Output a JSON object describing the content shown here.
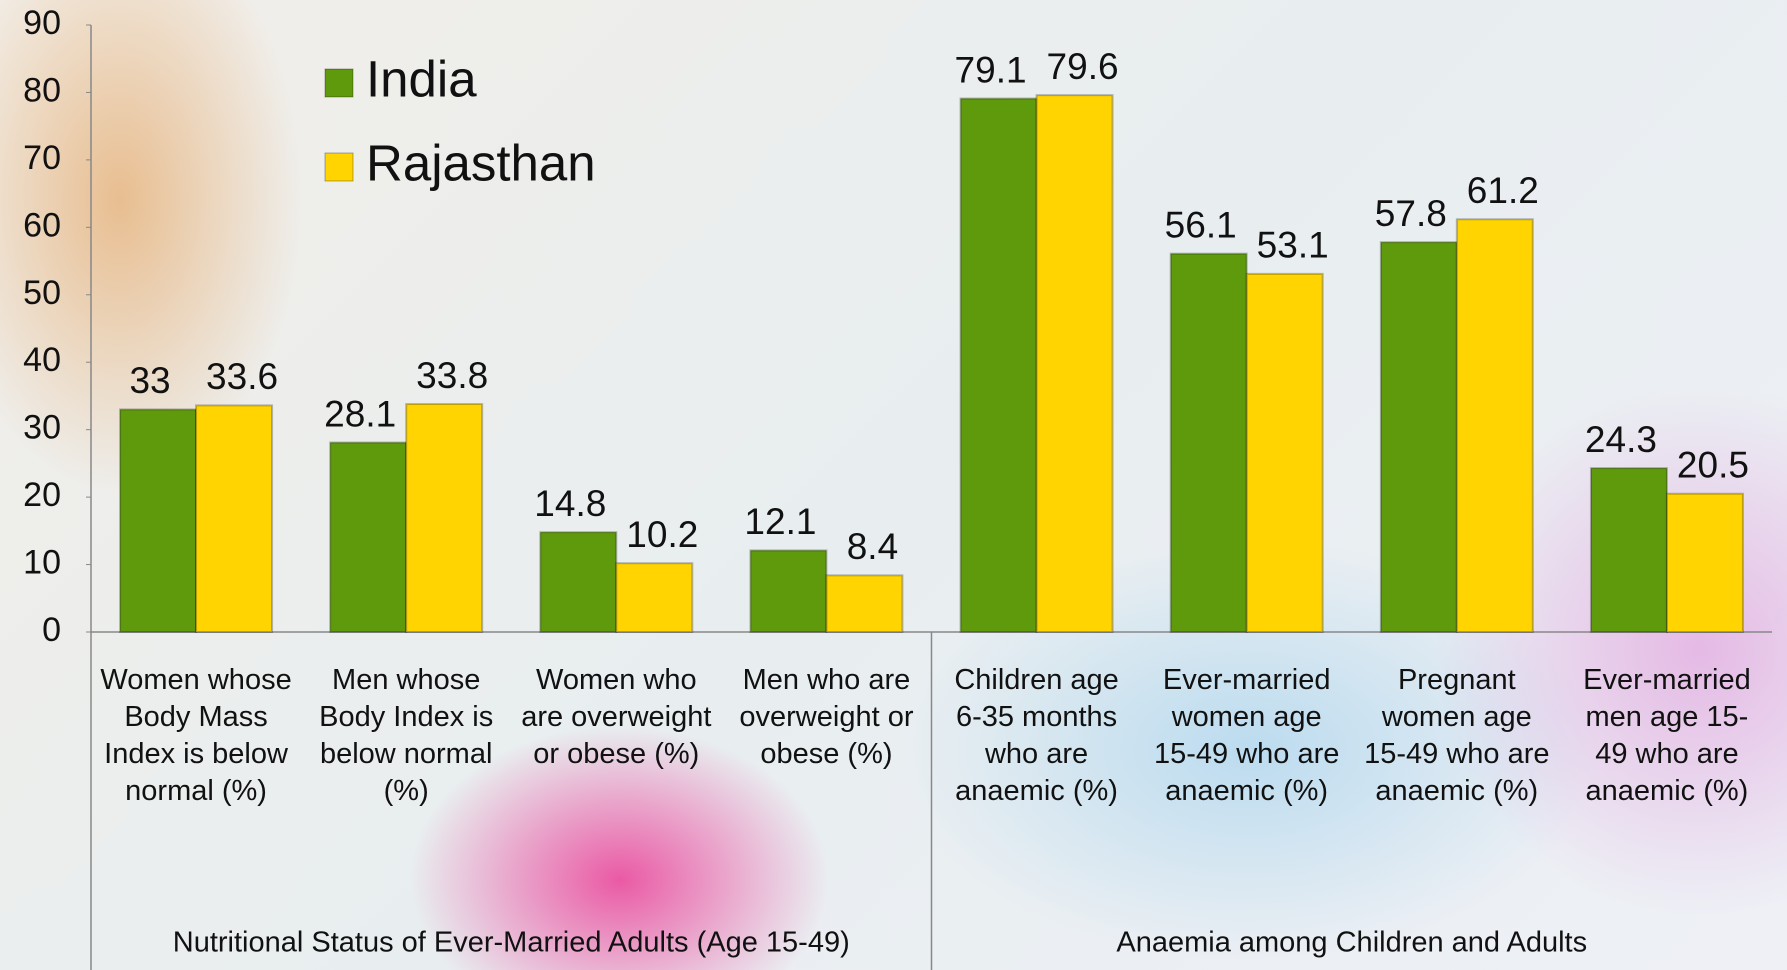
{
  "chart_data": {
    "type": "bar",
    "categories": [
      "Women whose Body Mass Index is below normal (%)",
      "Men whose Body Index is below normal (%)",
      "Women who are overweight or obese (%)",
      "Men who are overweight or obese (%)",
      "Children age 6-35 months who are anaemic (%)",
      "Ever-married women age 15-49 who are anaemic (%)",
      "Pregnant women age 15-49 who are anaemic (%)",
      "Ever-married men age 15-49 who are anaemic (%)"
    ],
    "category_groups": [
      "Nutritional Status of Ever-Married Adults (Age 15-49)",
      "Anaemia among Children and Adults"
    ],
    "series": [
      {
        "name": "India",
        "color": "#5e9a0c",
        "values": [
          33,
          28.1,
          14.8,
          12.1,
          79.1,
          56.1,
          57.8,
          24.3
        ]
      },
      {
        "name": "Rajasthan",
        "color": "#ffd400",
        "values": [
          33.6,
          33.8,
          10.2,
          8.4,
          79.6,
          53.1,
          61.2,
          20.5
        ]
      }
    ],
    "ylim": [
      0,
      90
    ],
    "yticks": [
      0,
      10,
      20,
      30,
      40,
      50,
      60,
      70,
      80,
      90
    ],
    "grid": false,
    "legend": "upper-left"
  }
}
